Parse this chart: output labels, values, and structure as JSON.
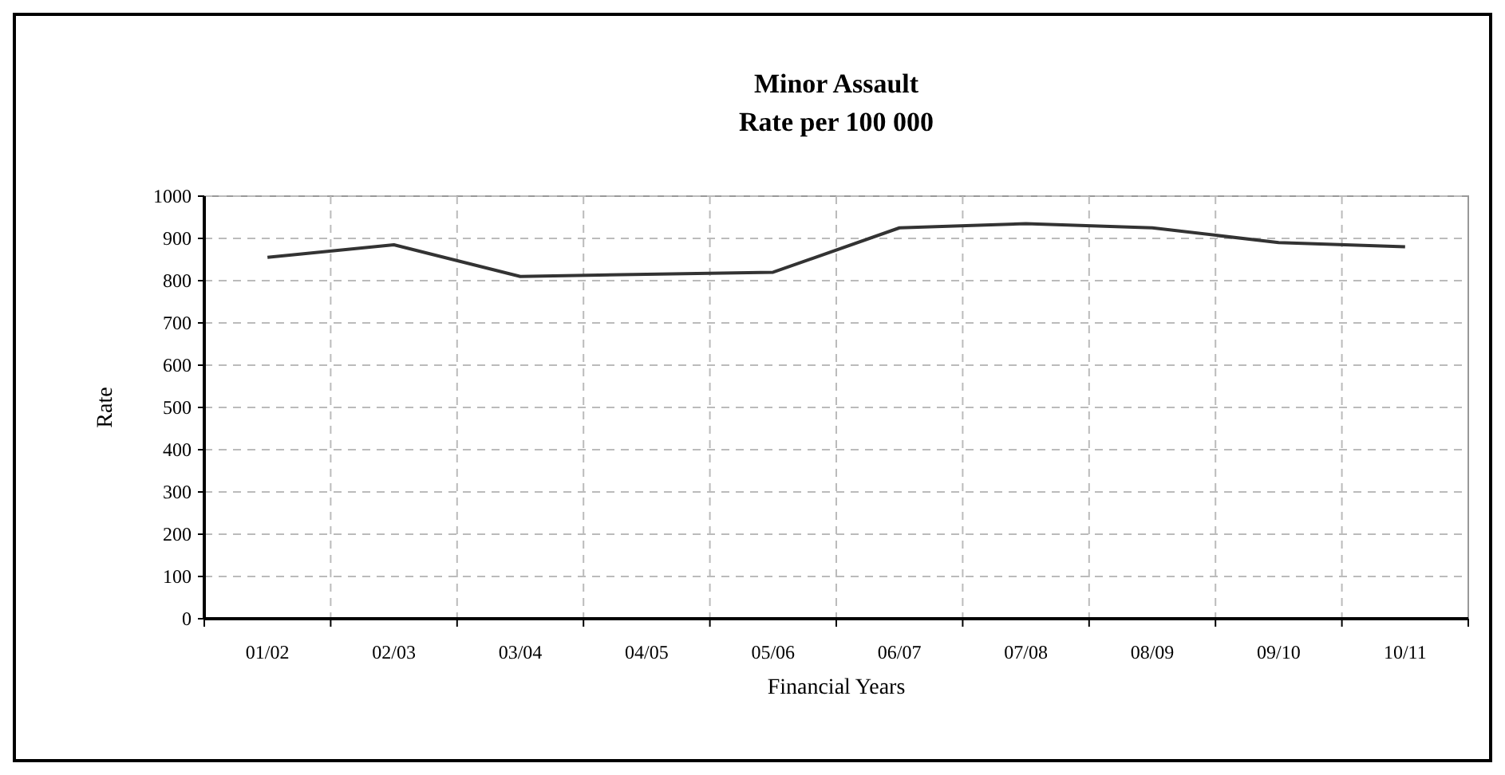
{
  "chart_data": {
    "type": "line",
    "title": "Minor Assault",
    "subtitle": "Rate per 100 000",
    "xlabel": "Financial Years",
    "ylabel": "Rate",
    "categories": [
      "01/02",
      "02/03",
      "03/04",
      "04/05",
      "05/06",
      "06/07",
      "07/08",
      "08/09",
      "09/10",
      "10/11"
    ],
    "series": [
      {
        "color": "#333333",
        "values": [
          855,
          885,
          810,
          815,
          820,
          925,
          935,
          925,
          890,
          880
        ]
      }
    ],
    "ylim": [
      0,
      1000
    ],
    "yticks": [
      0,
      100,
      200,
      300,
      400,
      500,
      600,
      700,
      800,
      900,
      1000
    ],
    "grid": true,
    "line_style": "solid",
    "marker": "none"
  }
}
